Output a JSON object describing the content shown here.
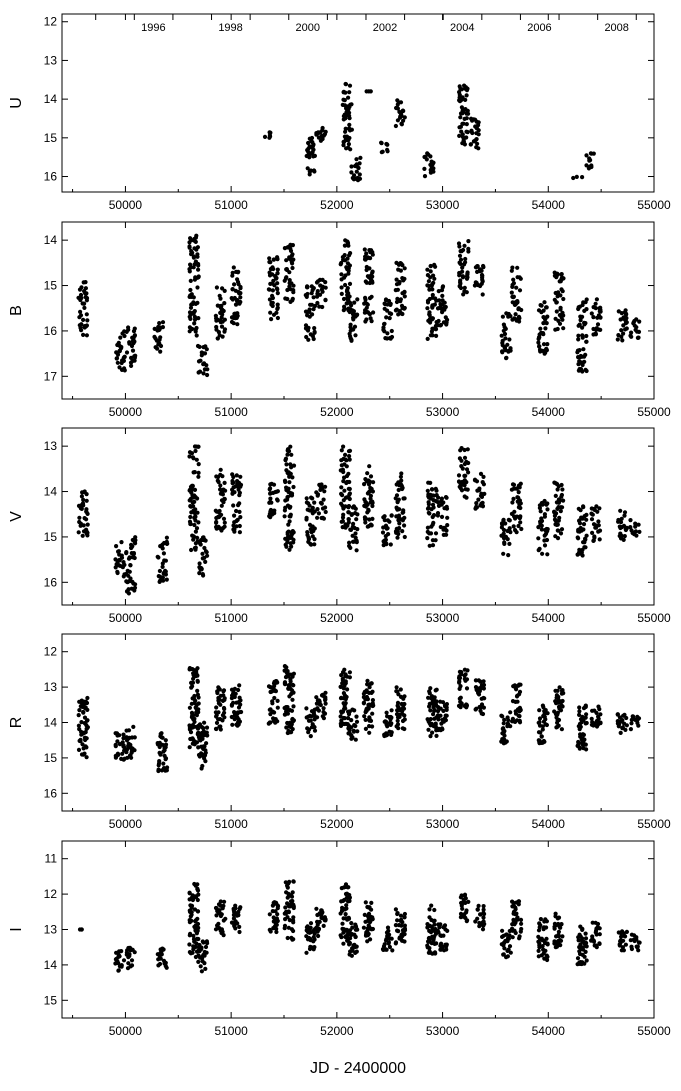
{
  "chart_data": [
    {
      "type": "scatter",
      "ylabel": "U",
      "xlim": [
        49400,
        55000
      ],
      "ylim": [
        16.4,
        11.8
      ],
      "x_ticks": [
        50000,
        51000,
        52000,
        53000,
        54000,
        55000
      ],
      "x_tick_labels": [
        "50000",
        "51000",
        "52000",
        "53000",
        "54000",
        "55000"
      ],
      "y_ticks": [
        12,
        13,
        14,
        15,
        16
      ],
      "y_tick_labels": [
        "12",
        "13",
        "14",
        "15",
        "16"
      ],
      "top_axis_years": [
        "1996",
        "1998",
        "2000",
        "2002",
        "2004",
        "2006",
        "2008"
      ],
      "series": [
        {
          "clusters": [
            {
              "x": 51350,
              "ymin": 14.8,
              "ymax": 15.0
            },
            {
              "x": 51750,
              "ymin": 15.0,
              "ymax": 16.0
            },
            {
              "x": 51850,
              "ymin": 14.6,
              "ymax": 15.1
            },
            {
              "x": 52100,
              "ymin": 13.6,
              "ymax": 15.3
            },
            {
              "x": 52180,
              "ymin": 15.5,
              "ymax": 16.1
            },
            {
              "x": 52300,
              "ymin": 13.8,
              "ymax": 13.8
            },
            {
              "x": 52450,
              "ymin": 15.1,
              "ymax": 15.4
            },
            {
              "x": 52600,
              "ymin": 14.0,
              "ymax": 14.7
            },
            {
              "x": 52870,
              "ymin": 15.4,
              "ymax": 16.0
            },
            {
              "x": 53200,
              "ymin": 13.6,
              "ymax": 15.2
            },
            {
              "x": 53300,
              "ymin": 14.5,
              "ymax": 15.3
            },
            {
              "x": 54280,
              "ymin": 16.0,
              "ymax": 16.1
            },
            {
              "x": 54400,
              "ymin": 15.4,
              "ymax": 15.8
            }
          ]
        }
      ]
    },
    {
      "type": "scatter",
      "ylabel": "B",
      "xlim": [
        49400,
        55000
      ],
      "ylim": [
        17.5,
        13.6
      ],
      "x_ticks": [
        50000,
        51000,
        52000,
        53000,
        54000,
        55000
      ],
      "x_tick_labels": [
        "50000",
        "51000",
        "52000",
        "53000",
        "54000",
        "55000"
      ],
      "y_ticks": [
        14,
        15,
        16,
        17
      ],
      "y_tick_labels": [
        "14",
        "15",
        "16",
        "17"
      ],
      "series": [
        {
          "clusters": [
            {
              "x": 49600,
              "ymin": 14.9,
              "ymax": 16.1
            },
            {
              "x": 49950,
              "ymin": 16.0,
              "ymax": 16.9
            },
            {
              "x": 50050,
              "ymin": 15.9,
              "ymax": 16.8
            },
            {
              "x": 50320,
              "ymin": 15.8,
              "ymax": 16.5
            },
            {
              "x": 50650,
              "ymin": 13.9,
              "ymax": 16.2
            },
            {
              "x": 50730,
              "ymin": 16.3,
              "ymax": 17.0
            },
            {
              "x": 50900,
              "ymin": 15.0,
              "ymax": 16.2
            },
            {
              "x": 51050,
              "ymin": 14.6,
              "ymax": 15.9
            },
            {
              "x": 51400,
              "ymin": 14.3,
              "ymax": 15.8
            },
            {
              "x": 51550,
              "ymin": 14.1,
              "ymax": 15.4
            },
            {
              "x": 51750,
              "ymin": 15.0,
              "ymax": 16.2
            },
            {
              "x": 51850,
              "ymin": 14.8,
              "ymax": 15.5
            },
            {
              "x": 52080,
              "ymin": 14.0,
              "ymax": 15.7
            },
            {
              "x": 52150,
              "ymin": 15.3,
              "ymax": 16.3
            },
            {
              "x": 52300,
              "ymin": 14.2,
              "ymax": 15.8
            },
            {
              "x": 52480,
              "ymin": 15.3,
              "ymax": 16.2
            },
            {
              "x": 52600,
              "ymin": 14.5,
              "ymax": 15.7
            },
            {
              "x": 52900,
              "ymin": 14.5,
              "ymax": 16.2
            },
            {
              "x": 53000,
              "ymin": 15.0,
              "ymax": 16.0
            },
            {
              "x": 53200,
              "ymin": 13.9,
              "ymax": 15.2
            },
            {
              "x": 53350,
              "ymin": 14.5,
              "ymax": 15.3
            },
            {
              "x": 53600,
              "ymin": 15.6,
              "ymax": 16.6
            },
            {
              "x": 53700,
              "ymin": 14.6,
              "ymax": 15.8
            },
            {
              "x": 53950,
              "ymin": 15.3,
              "ymax": 16.5
            },
            {
              "x": 54100,
              "ymin": 14.7,
              "ymax": 16.0
            },
            {
              "x": 54320,
              "ymin": 15.3,
              "ymax": 16.9
            },
            {
              "x": 54450,
              "ymin": 15.3,
              "ymax": 16.1
            },
            {
              "x": 54700,
              "ymin": 15.5,
              "ymax": 16.3
            },
            {
              "x": 54820,
              "ymin": 15.7,
              "ymax": 16.2
            }
          ]
        }
      ]
    },
    {
      "type": "scatter",
      "ylabel": "V",
      "xlim": [
        49400,
        55000
      ],
      "ylim": [
        16.5,
        12.6
      ],
      "x_ticks": [
        50000,
        51000,
        52000,
        53000,
        54000,
        55000
      ],
      "x_tick_labels": [
        "50000",
        "51000",
        "52000",
        "53000",
        "54000",
        "55000"
      ],
      "y_ticks": [
        13,
        14,
        15,
        16
      ],
      "y_tick_labels": [
        "13",
        "14",
        "15",
        "16"
      ],
      "series": [
        {
          "clusters": [
            {
              "x": 49600,
              "ymin": 13.9,
              "ymax": 15.0
            },
            {
              "x": 49950,
              "ymin": 15.1,
              "ymax": 15.9
            },
            {
              "x": 50050,
              "ymin": 15.0,
              "ymax": 16.3
            },
            {
              "x": 50350,
              "ymin": 15.0,
              "ymax": 16.0
            },
            {
              "x": 50650,
              "ymin": 13.0,
              "ymax": 15.3
            },
            {
              "x": 50730,
              "ymin": 15.0,
              "ymax": 15.9
            },
            {
              "x": 50900,
              "ymin": 13.5,
              "ymax": 14.9
            },
            {
              "x": 51050,
              "ymin": 13.6,
              "ymax": 14.9
            },
            {
              "x": 51400,
              "ymin": 13.7,
              "ymax": 14.6
            },
            {
              "x": 51550,
              "ymin": 13.0,
              "ymax": 15.3
            },
            {
              "x": 51750,
              "ymin": 14.1,
              "ymax": 15.2
            },
            {
              "x": 51850,
              "ymin": 13.8,
              "ymax": 14.6
            },
            {
              "x": 52080,
              "ymin": 13.0,
              "ymax": 14.8
            },
            {
              "x": 52150,
              "ymin": 14.3,
              "ymax": 15.3
            },
            {
              "x": 52300,
              "ymin": 13.4,
              "ymax": 14.8
            },
            {
              "x": 52480,
              "ymin": 14.5,
              "ymax": 15.2
            },
            {
              "x": 52600,
              "ymin": 13.6,
              "ymax": 15.1
            },
            {
              "x": 52900,
              "ymin": 13.8,
              "ymax": 15.2
            },
            {
              "x": 53000,
              "ymin": 14.1,
              "ymax": 15.0
            },
            {
              "x": 53200,
              "ymin": 13.0,
              "ymax": 14.2
            },
            {
              "x": 53350,
              "ymin": 13.6,
              "ymax": 14.4
            },
            {
              "x": 53600,
              "ymin": 14.6,
              "ymax": 15.4
            },
            {
              "x": 53700,
              "ymin": 13.7,
              "ymax": 14.9
            },
            {
              "x": 53950,
              "ymin": 14.2,
              "ymax": 15.4
            },
            {
              "x": 54100,
              "ymin": 13.8,
              "ymax": 15.1
            },
            {
              "x": 54320,
              "ymin": 14.3,
              "ymax": 15.5
            },
            {
              "x": 54450,
              "ymin": 14.3,
              "ymax": 15.1
            },
            {
              "x": 54700,
              "ymin": 14.4,
              "ymax": 15.1
            },
            {
              "x": 54820,
              "ymin": 14.6,
              "ymax": 15.0
            }
          ]
        }
      ]
    },
    {
      "type": "scatter",
      "ylabel": "R",
      "xlim": [
        49400,
        55000
      ],
      "ylim": [
        16.5,
        11.5
      ],
      "x_ticks": [
        50000,
        51000,
        52000,
        53000,
        54000,
        55000
      ],
      "x_tick_labels": [
        "50000",
        "51000",
        "52000",
        "53000",
        "54000",
        "55000"
      ],
      "y_ticks": [
        12,
        13,
        14,
        15,
        16
      ],
      "y_tick_labels": [
        "12",
        "13",
        "14",
        "15",
        "16"
      ],
      "series": [
        {
          "clusters": [
            {
              "x": 49600,
              "ymin": 13.3,
              "ymax": 15.0
            },
            {
              "x": 49950,
              "ymin": 14.3,
              "ymax": 15.1
            },
            {
              "x": 50050,
              "ymin": 14.1,
              "ymax": 15.0
            },
            {
              "x": 50350,
              "ymin": 14.3,
              "ymax": 15.4
            },
            {
              "x": 50650,
              "ymin": 12.4,
              "ymax": 14.7
            },
            {
              "x": 50730,
              "ymin": 14.0,
              "ymax": 15.3
            },
            {
              "x": 50900,
              "ymin": 13.0,
              "ymax": 14.2
            },
            {
              "x": 51050,
              "ymin": 12.9,
              "ymax": 14.1
            },
            {
              "x": 51400,
              "ymin": 12.8,
              "ymax": 14.1
            },
            {
              "x": 51550,
              "ymin": 12.4,
              "ymax": 14.3
            },
            {
              "x": 51750,
              "ymin": 13.6,
              "ymax": 14.4
            },
            {
              "x": 51850,
              "ymin": 13.1,
              "ymax": 13.9
            },
            {
              "x": 52080,
              "ymin": 12.5,
              "ymax": 14.1
            },
            {
              "x": 52150,
              "ymin": 13.6,
              "ymax": 14.5
            },
            {
              "x": 52300,
              "ymin": 12.8,
              "ymax": 14.3
            },
            {
              "x": 52480,
              "ymin": 13.6,
              "ymax": 14.4
            },
            {
              "x": 52600,
              "ymin": 13.0,
              "ymax": 14.2
            },
            {
              "x": 52900,
              "ymin": 13.0,
              "ymax": 14.4
            },
            {
              "x": 53000,
              "ymin": 13.4,
              "ymax": 14.3
            },
            {
              "x": 53200,
              "ymin": 12.5,
              "ymax": 13.6
            },
            {
              "x": 53350,
              "ymin": 12.8,
              "ymax": 13.8
            },
            {
              "x": 53600,
              "ymin": 13.7,
              "ymax": 14.6
            },
            {
              "x": 53700,
              "ymin": 12.9,
              "ymax": 14.0
            },
            {
              "x": 53950,
              "ymin": 13.5,
              "ymax": 14.6
            },
            {
              "x": 54100,
              "ymin": 13.0,
              "ymax": 14.2
            },
            {
              "x": 54320,
              "ymin": 13.5,
              "ymax": 14.8
            },
            {
              "x": 54450,
              "ymin": 13.5,
              "ymax": 14.2
            },
            {
              "x": 54700,
              "ymin": 13.7,
              "ymax": 14.3
            },
            {
              "x": 54820,
              "ymin": 13.8,
              "ymax": 14.2
            }
          ]
        }
      ]
    },
    {
      "type": "scatter",
      "ylabel": "I",
      "xlabel": "JD - 2400000",
      "xlim": [
        49400,
        55000
      ],
      "ylim": [
        15.5,
        10.5
      ],
      "x_ticks": [
        50000,
        51000,
        52000,
        53000,
        54000,
        55000
      ],
      "x_tick_labels": [
        "50000",
        "51000",
        "52000",
        "53000",
        "54000",
        "55000"
      ],
      "y_ticks": [
        11,
        12,
        13,
        14,
        15
      ],
      "y_tick_labels": [
        "11",
        "12",
        "13",
        "14",
        "15"
      ],
      "series": [
        {
          "clusters": [
            {
              "x": 49600,
              "ymin": 13.0,
              "ymax": 13.0
            },
            {
              "x": 49950,
              "ymin": 13.6,
              "ymax": 14.2
            },
            {
              "x": 50050,
              "ymin": 13.5,
              "ymax": 14.1
            },
            {
              "x": 50350,
              "ymin": 13.5,
              "ymax": 14.2
            },
            {
              "x": 50650,
              "ymin": 11.7,
              "ymax": 13.8
            },
            {
              "x": 50730,
              "ymin": 13.3,
              "ymax": 14.2
            },
            {
              "x": 50900,
              "ymin": 12.2,
              "ymax": 13.2
            },
            {
              "x": 51050,
              "ymin": 12.3,
              "ymax": 13.1
            },
            {
              "x": 51400,
              "ymin": 12.2,
              "ymax": 13.1
            },
            {
              "x": 51550,
              "ymin": 11.6,
              "ymax": 13.3
            },
            {
              "x": 51750,
              "ymin": 12.8,
              "ymax": 13.7
            },
            {
              "x": 51850,
              "ymin": 12.4,
              "ymax": 13.2
            },
            {
              "x": 52080,
              "ymin": 11.7,
              "ymax": 13.4
            },
            {
              "x": 52150,
              "ymin": 12.8,
              "ymax": 13.8
            },
            {
              "x": 52300,
              "ymin": 12.2,
              "ymax": 13.4
            },
            {
              "x": 52480,
              "ymin": 12.9,
              "ymax": 13.6
            },
            {
              "x": 52600,
              "ymin": 12.4,
              "ymax": 13.5
            },
            {
              "x": 52900,
              "ymin": 12.3,
              "ymax": 13.7
            },
            {
              "x": 53000,
              "ymin": 12.8,
              "ymax": 13.6
            },
            {
              "x": 53200,
              "ymin": 12.0,
              "ymax": 12.8
            },
            {
              "x": 53350,
              "ymin": 12.3,
              "ymax": 13.0
            },
            {
              "x": 53600,
              "ymin": 13.0,
              "ymax": 13.8
            },
            {
              "x": 53700,
              "ymin": 12.2,
              "ymax": 13.3
            },
            {
              "x": 53950,
              "ymin": 12.7,
              "ymax": 13.9
            },
            {
              "x": 54100,
              "ymin": 12.5,
              "ymax": 13.5
            },
            {
              "x": 54320,
              "ymin": 12.8,
              "ymax": 14.0
            },
            {
              "x": 54450,
              "ymin": 12.8,
              "ymax": 13.5
            },
            {
              "x": 54700,
              "ymin": 13.0,
              "ymax": 13.6
            },
            {
              "x": 54820,
              "ymin": 13.1,
              "ymax": 13.6
            }
          ]
        }
      ]
    }
  ],
  "colors": {
    "background": "#ffffff",
    "points": "#000000",
    "axes": "#000000"
  }
}
